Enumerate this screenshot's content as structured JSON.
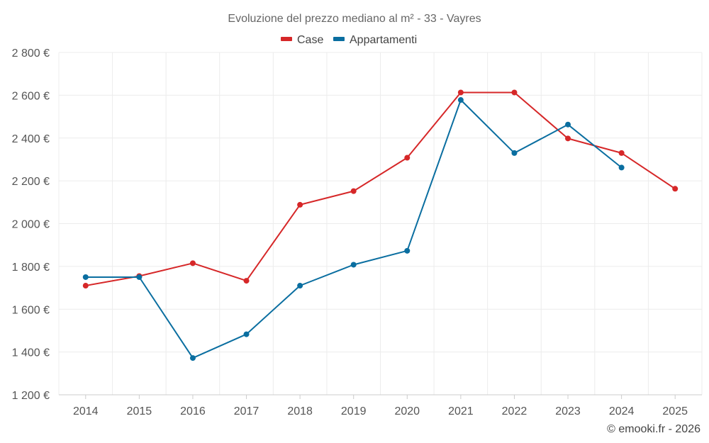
{
  "chart_data": {
    "type": "line",
    "title": "Evoluzione del prezzo mediano al m² - 33 - Vayres",
    "x": [
      "2014",
      "2015",
      "2016",
      "2017",
      "2018",
      "2019",
      "2020",
      "2021",
      "2022",
      "2023",
      "2024",
      "2025"
    ],
    "series": [
      {
        "name": "Case",
        "color": "#d62728",
        "values": [
          1710,
          1755,
          1815,
          1733,
          2088,
          2152,
          2308,
          2613,
          2613,
          2398,
          2330,
          2163
        ]
      },
      {
        "name": "Appartamenti",
        "color": "#0a6ea0",
        "values": [
          1750,
          1750,
          1372,
          1483,
          1710,
          1808,
          1873,
          2578,
          2330,
          2463,
          2262,
          null
        ]
      }
    ],
    "ylim": [
      1200,
      2800
    ],
    "y_ticks": [
      1200,
      1400,
      1600,
      1800,
      2000,
      2200,
      2400,
      2600,
      2800
    ],
    "y_tick_labels": [
      "1 200 €",
      "1 400 €",
      "1 600 €",
      "1 800 €",
      "2 000 €",
      "2 200 €",
      "2 400 €",
      "2 600 €",
      "2 800 €"
    ],
    "xlabel": "",
    "ylabel": "",
    "grid": true,
    "legend": "top-center",
    "credit": "© emooki.fr - 2026"
  }
}
